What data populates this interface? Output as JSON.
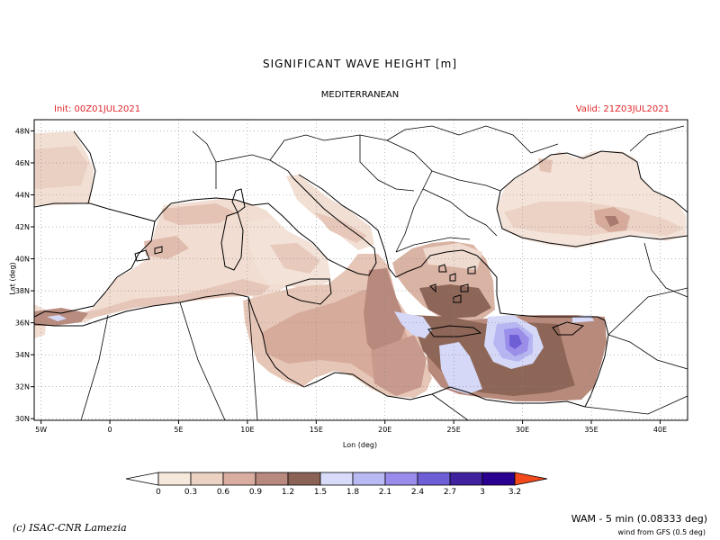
{
  "header": {
    "title": "SIGNIFICANT WAVE HEIGHT [m]",
    "region": "MEDITERRANEAN",
    "init": "Init: 00Z01JUL2021",
    "valid": "Valid: 21Z03JUL2021"
  },
  "axes": {
    "xlabel": "Lon (deg)",
    "ylabel": "Lat (deg)",
    "x_ticks": [
      {
        "value": -5,
        "label": "5W"
      },
      {
        "value": 0,
        "label": "0"
      },
      {
        "value": 5,
        "label": "5E"
      },
      {
        "value": 10,
        "label": "10E"
      },
      {
        "value": 15,
        "label": "15E"
      },
      {
        "value": 20,
        "label": "20E"
      },
      {
        "value": 25,
        "label": "25E"
      },
      {
        "value": 30,
        "label": "30E"
      },
      {
        "value": 35,
        "label": "35E"
      },
      {
        "value": 40,
        "label": "40E"
      }
    ],
    "y_ticks": [
      {
        "value": 30,
        "label": "30N"
      },
      {
        "value": 32,
        "label": "32N"
      },
      {
        "value": 34,
        "label": "34N"
      },
      {
        "value": 36,
        "label": "36N"
      },
      {
        "value": 38,
        "label": "38N"
      },
      {
        "value": 40,
        "label": "40N"
      },
      {
        "value": 42,
        "label": "42N"
      },
      {
        "value": 44,
        "label": "44N"
      },
      {
        "value": 46,
        "label": "46N"
      },
      {
        "value": 48,
        "label": "48N"
      }
    ],
    "lon_range": [
      -5.5,
      42
    ],
    "lat_range": [
      29.9,
      48.7
    ]
  },
  "colorbar": {
    "colors": [
      "#ffffff",
      "#f7e8dc",
      "#ecd2c2",
      "#d9ada0",
      "#b8897f",
      "#8a6356",
      "#d8dcfa",
      "#b9b9f4",
      "#9a8cec",
      "#6f5fd6",
      "#40229e",
      "#2a0090",
      "#f24a1d"
    ],
    "labels": [
      "0",
      "0.3",
      "0.6",
      "0.9",
      "1.2",
      "1.5",
      "1.8",
      "2.1",
      "2.4",
      "2.7",
      "3",
      "3.2"
    ]
  },
  "footer": {
    "credit": "(c) ISAC-CNR Lamezia",
    "model": "WAM - 5 min (0.08333 deg)",
    "wind": "wind from GFS (0.5 deg)"
  }
}
